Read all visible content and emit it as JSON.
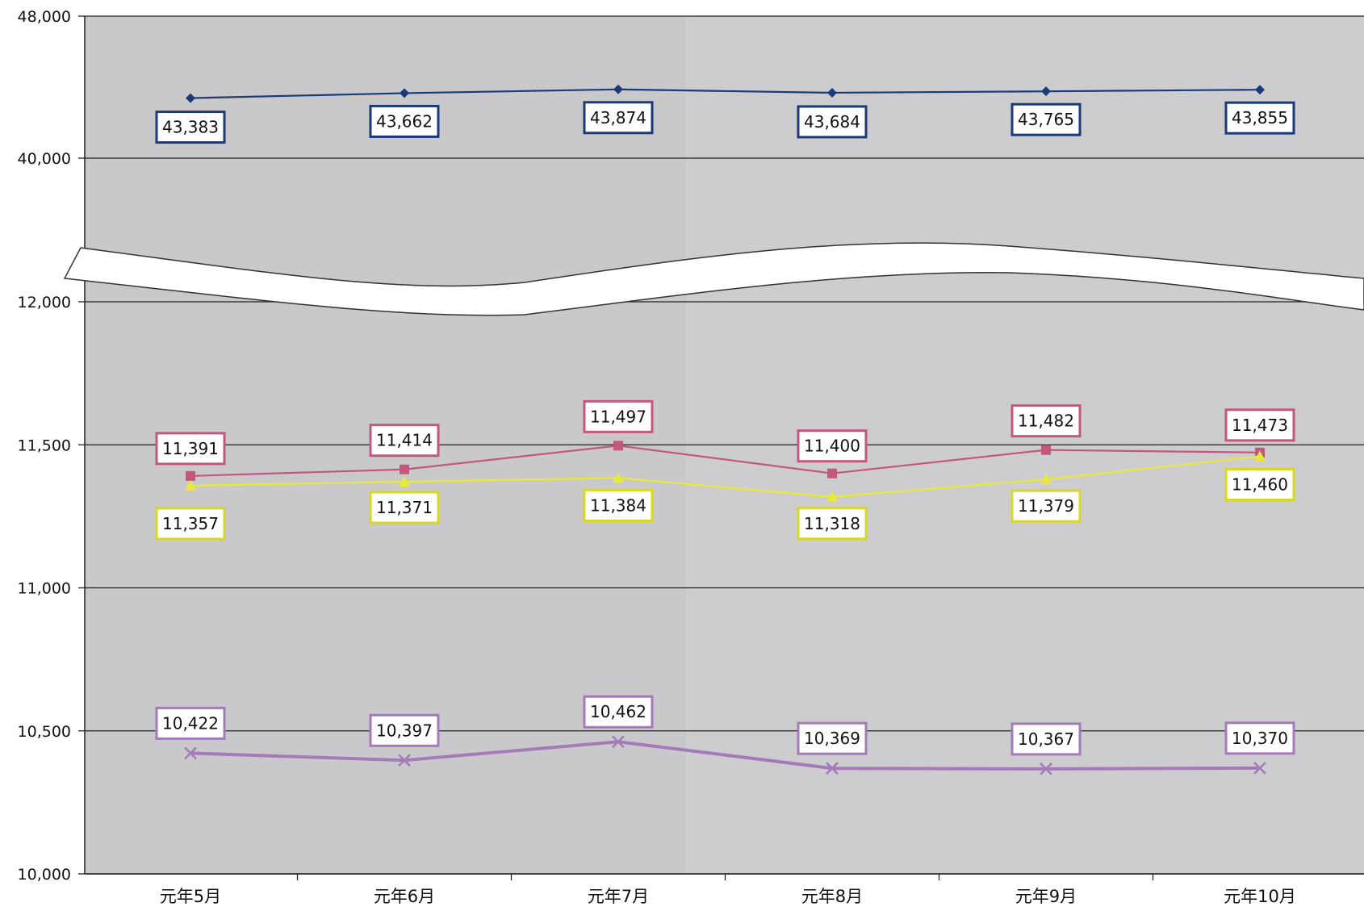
{
  "chart_data": {
    "type": "line",
    "title": "",
    "xlabel": "",
    "ylabel": "",
    "categories": [
      "元年5月",
      "元年6月",
      "元年7月",
      "元年8月",
      "元年9月",
      "元年10月"
    ],
    "y_axis": {
      "broken": true,
      "upper_segment": [
        38000,
        48000
      ],
      "lower_segment": [
        10000,
        12000
      ],
      "ticks": [
        "48,000",
        "40,000",
        "12,000",
        "11,500",
        "11,000",
        "10,500",
        "10,000"
      ]
    },
    "grid": true,
    "series": [
      {
        "values": [
          43383,
          43662,
          43874,
          43684,
          43765,
          43855
        ],
        "labels": [
          "43,383",
          "43,662",
          "43,874",
          "43,684",
          "43,765",
          "43,855"
        ],
        "color": "#1a3a7a",
        "marker": "diamond"
      },
      {
        "values": [
          11391,
          11414,
          11497,
          11400,
          11482,
          11473
        ],
        "labels": [
          "11,391",
          "11,414",
          "11,497",
          "11,400",
          "11,482",
          "11,473"
        ],
        "color": "#c4577d",
        "marker": "square"
      },
      {
        "values": [
          11357,
          11371,
          11384,
          11318,
          11379,
          11460
        ],
        "labels": [
          "11,357",
          "11,371",
          "11,384",
          "11,318",
          "11,379",
          "11,460"
        ],
        "color": "#e9e93a",
        "marker": "triangle"
      },
      {
        "values": [
          10422,
          10397,
          10462,
          10369,
          10367,
          10370
        ],
        "labels": [
          "10,422",
          "10,397",
          "10,462",
          "10,369",
          "10,367",
          "10,370"
        ],
        "color": "#a57ab8",
        "marker": "x"
      }
    ]
  }
}
